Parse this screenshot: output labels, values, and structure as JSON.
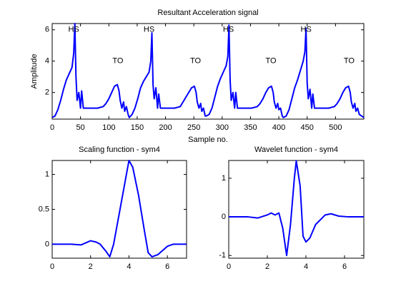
{
  "chart_data": [
    {
      "type": "line",
      "title": "Resultant Acceleration signal",
      "x_label": "Sample no.",
      "y_label": "Amplitude",
      "xlim": [
        0,
        550
      ],
      "ylim": [
        0.3,
        6.4
      ],
      "xticks": [
        0,
        50,
        100,
        150,
        200,
        250,
        300,
        350,
        400,
        450,
        500
      ],
      "yticks": [
        2,
        4,
        6
      ],
      "annotations": [
        {
          "text": "HS",
          "x": 38,
          "y": 6
        },
        {
          "text": "HS",
          "x": 171,
          "y": 6
        },
        {
          "text": "HS",
          "x": 311,
          "y": 6
        },
        {
          "text": "HS",
          "x": 448,
          "y": 6
        },
        {
          "text": "TO",
          "x": 116,
          "y": 4
        },
        {
          "text": "TO",
          "x": 253,
          "y": 4
        },
        {
          "text": "TO",
          "x": 386,
          "y": 4
        },
        {
          "text": "TO",
          "x": 524,
          "y": 4
        }
      ],
      "series": [
        {
          "color": "#0000ff",
          "x": [
            0,
            5,
            10,
            15,
            20,
            25,
            30,
            35,
            38,
            40,
            42,
            44,
            47,
            50,
            52,
            55,
            60,
            70,
            80,
            90,
            95,
            100,
            105,
            110,
            115,
            118,
            120,
            123,
            126,
            128,
            131,
            134,
            136,
            141,
            146,
            151,
            156,
            161,
            166,
            171,
            174,
            176,
            178,
            180,
            183,
            186,
            188,
            191,
            196,
            206,
            216,
            226,
            231,
            236,
            241,
            246,
            251,
            254,
            256,
            259,
            262,
            264,
            267,
            270,
            272,
            277,
            282,
            287,
            292,
            297,
            302,
            307,
            310,
            312,
            314,
            316,
            319,
            322,
            324,
            327,
            332,
            342,
            352,
            362,
            367,
            372,
            377,
            382,
            387,
            390,
            392,
            395,
            398,
            400,
            403,
            406,
            408,
            413,
            418,
            423,
            428,
            433,
            438,
            443,
            446,
            448,
            450,
            452,
            455,
            458,
            460,
            463,
            468,
            478,
            488,
            498,
            503,
            508,
            513,
            518,
            523,
            526,
            528,
            531,
            534,
            536,
            539,
            542,
            546,
            550
          ],
          "values": [
            0.4,
            0.5,
            0.9,
            1.5,
            2.2,
            2.8,
            3.2,
            3.6,
            4.5,
            6.4,
            3.0,
            1.5,
            2.0,
            1.0,
            2.1,
            1.0,
            1.0,
            1.0,
            1.0,
            1.1,
            1.3,
            1.6,
            2.0,
            2.4,
            2.5,
            2.1,
            1.5,
            1.0,
            1.4,
            0.8,
            1.1,
            0.6,
            0.4,
            0.6,
            1.0,
            1.6,
            2.3,
            2.7,
            3.0,
            3.3,
            4.0,
            5.8,
            2.5,
            1.6,
            2.3,
            1.0,
            1.9,
            1.0,
            1.0,
            1.0,
            1.0,
            1.1,
            1.4,
            1.7,
            2.0,
            2.3,
            2.4,
            2.0,
            1.4,
            1.0,
            1.3,
            0.8,
            1.0,
            0.5,
            0.5,
            0.6,
            1.0,
            1.7,
            2.4,
            2.9,
            3.3,
            3.7,
            4.3,
            6.3,
            2.8,
            1.5,
            2.0,
            1.0,
            2.0,
            1.0,
            1.0,
            1.0,
            1.0,
            1.1,
            1.3,
            1.6,
            2.0,
            2.3,
            2.4,
            2.0,
            1.4,
            1.0,
            1.3,
            0.9,
            1.0,
            0.5,
            0.4,
            0.5,
            0.9,
            1.6,
            2.3,
            2.8,
            3.4,
            4.0,
            4.6,
            6.1,
            2.6,
            1.6,
            2.2,
            1.0,
            1.9,
            1.0,
            1.0,
            1.0,
            1.0,
            1.1,
            1.3,
            1.6,
            2.0,
            2.3,
            2.4,
            2.0,
            1.4,
            1.0,
            1.3,
            0.8,
            1.0,
            0.6,
            0.5,
            0.4
          ]
        }
      ]
    },
    {
      "type": "line",
      "title": "Scaling function - sym4",
      "xlim": [
        0,
        7
      ],
      "ylim": [
        -0.2,
        1.2
      ],
      "xticks": [
        0,
        2,
        4,
        6
      ],
      "yticks": [
        0,
        0.5,
        1
      ],
      "series": [
        {
          "color": "#0000ff",
          "x": [
            0,
            1,
            1.5,
            2,
            2.3,
            2.5,
            2.8,
            3.0,
            3.2,
            3.5,
            3.8,
            4.0,
            4.2,
            4.5,
            4.8,
            5.0,
            5.2,
            5.5,
            6.0,
            6.3,
            7
          ],
          "values": [
            0,
            0,
            -0.01,
            0.05,
            0.03,
            0,
            -0.1,
            -0.18,
            0.0,
            0.45,
            0.9,
            1.2,
            1.1,
            0.7,
            0.2,
            -0.12,
            -0.18,
            -0.15,
            -0.03,
            0,
            0
          ]
        }
      ]
    },
    {
      "type": "line",
      "title": "Wavelet function - sym4",
      "xlim": [
        0,
        7
      ],
      "ylim": [
        -1.07,
        1.46
      ],
      "xticks": [
        0,
        2,
        4,
        6
      ],
      "yticks": [
        -1,
        0,
        1
      ],
      "series": [
        {
          "color": "#0000ff",
          "x": [
            0,
            1,
            1.5,
            2,
            2.2,
            2.4,
            2.6,
            2.8,
            3.0,
            3.2,
            3.4,
            3.5,
            3.7,
            3.85,
            4.0,
            4.2,
            4.5,
            5.0,
            5.3,
            5.7,
            6.2,
            7
          ],
          "values": [
            0,
            0,
            -0.03,
            0.05,
            0.1,
            0.05,
            0.1,
            -0.3,
            -1.0,
            -0.2,
            1.0,
            1.45,
            0.8,
            -0.5,
            -0.65,
            -0.55,
            -0.2,
            0.05,
            0.08,
            0.02,
            0,
            0
          ]
        }
      ]
    }
  ]
}
